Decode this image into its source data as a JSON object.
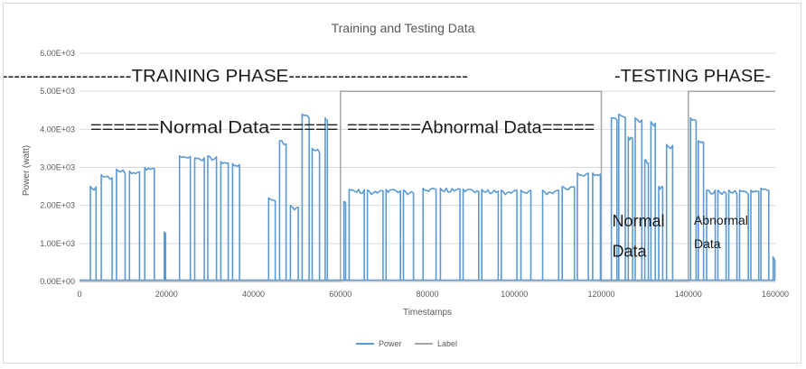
{
  "chart_data": {
    "type": "line",
    "title": "Training and Testing Data",
    "xlabel": "Timestamps",
    "ylabel": "Power (watt)",
    "xlim": [
      0,
      160000
    ],
    "ylim": [
      0,
      6000
    ],
    "x_ticks": [
      0,
      20000,
      40000,
      60000,
      80000,
      100000,
      120000,
      140000,
      160000
    ],
    "x_tick_labels": [
      "0",
      "20000",
      "40000",
      "60000",
      "80000",
      "100000",
      "120000",
      "140000",
      "160000"
    ],
    "y_ticks": [
      0,
      1000,
      2000,
      3000,
      4000,
      5000,
      6000
    ],
    "y_tick_labels": [
      "0.00E+00",
      "1.00E+03",
      "2.00E+03",
      "3.00E+03",
      "4.00E+03",
      "5.00E+03",
      "6.00E+03"
    ],
    "grid": "horizontal",
    "legend_position": "bottom",
    "series": [
      {
        "name": "Power",
        "color": "#5b9bd5",
        "style": "pulses",
        "pulses": [
          {
            "start": 2500,
            "end": 3800,
            "high": 2500
          },
          {
            "start": 5000,
            "end": 7500,
            "high": 2800
          },
          {
            "start": 8500,
            "end": 10500,
            "high": 2950
          },
          {
            "start": 11500,
            "end": 13800,
            "high": 2900
          },
          {
            "start": 15000,
            "end": 17200,
            "high": 3000
          },
          {
            "start": 19500,
            "end": 19800,
            "high": 1300
          },
          {
            "start": 23000,
            "end": 25500,
            "high": 3300
          },
          {
            "start": 26500,
            "end": 28700,
            "high": 3250
          },
          {
            "start": 29500,
            "end": 31500,
            "high": 3300
          },
          {
            "start": 32500,
            "end": 34200,
            "high": 3150
          },
          {
            "start": 35200,
            "end": 36800,
            "high": 3100
          },
          {
            "start": 43500,
            "end": 45000,
            "high": 2200
          },
          {
            "start": 46000,
            "end": 47500,
            "high": 3700
          },
          {
            "start": 48500,
            "end": 50300,
            "high": 2000
          },
          {
            "start": 51200,
            "end": 52800,
            "high": 4400
          },
          {
            "start": 53500,
            "end": 55200,
            "high": 3500
          },
          {
            "start": 56500,
            "end": 57000,
            "high": 4300
          },
          {
            "start": 60800,
            "end": 61200,
            "high": 2100
          },
          {
            "start": 62000,
            "end": 65500,
            "high": 2420
          },
          {
            "start": 66200,
            "end": 69800,
            "high": 2400
          },
          {
            "start": 70500,
            "end": 73800,
            "high": 2420
          },
          {
            "start": 74500,
            "end": 76800,
            "high": 2400
          },
          {
            "start": 79000,
            "end": 82000,
            "high": 2450
          },
          {
            "start": 83000,
            "end": 87500,
            "high": 2450
          },
          {
            "start": 88200,
            "end": 91800,
            "high": 2430
          },
          {
            "start": 92500,
            "end": 96300,
            "high": 2420
          },
          {
            "start": 97000,
            "end": 100600,
            "high": 2400
          },
          {
            "start": 101500,
            "end": 103800,
            "high": 2400
          },
          {
            "start": 106500,
            "end": 110200,
            "high": 2400
          },
          {
            "start": 111000,
            "end": 113800,
            "high": 2500
          },
          {
            "start": 114500,
            "end": 117000,
            "high": 2850
          },
          {
            "start": 118000,
            "end": 119800,
            "high": 2850
          },
          {
            "start": 122300,
            "end": 123600,
            "high": 4300
          },
          {
            "start": 124000,
            "end": 125500,
            "high": 4400
          },
          {
            "start": 126200,
            "end": 127200,
            "high": 3800
          },
          {
            "start": 127800,
            "end": 129300,
            "high": 4300
          },
          {
            "start": 130000,
            "end": 130800,
            "high": 3200
          },
          {
            "start": 131400,
            "end": 132400,
            "high": 4200
          },
          {
            "start": 133200,
            "end": 134100,
            "high": 2500
          },
          {
            "start": 135000,
            "end": 136400,
            "high": 3600
          },
          {
            "start": 140500,
            "end": 141800,
            "high": 4300
          },
          {
            "start": 142300,
            "end": 143500,
            "high": 3700
          },
          {
            "start": 144200,
            "end": 146200,
            "high": 2400
          },
          {
            "start": 146800,
            "end": 148700,
            "high": 2400
          },
          {
            "start": 149300,
            "end": 151200,
            "high": 2400
          },
          {
            "start": 151800,
            "end": 153800,
            "high": 2400
          },
          {
            "start": 154400,
            "end": 156200,
            "high": 2400
          },
          {
            "start": 156700,
            "end": 158500,
            "high": 2450
          },
          {
            "start": 159500,
            "end": 159900,
            "high": 650
          }
        ]
      },
      {
        "name": "Label",
        "color": "#a5a5a5",
        "style": "step",
        "x": [
          0,
          60000,
          60000,
          120000,
          120000,
          140000,
          140000,
          160000
        ],
        "y": [
          0,
          0,
          5000,
          5000,
          0,
          0,
          5000,
          5000
        ]
      }
    ],
    "annotations": [
      {
        "text": "-----------------------------TRAINING PHASE-----------------------------",
        "x": 30000,
        "y": 5250,
        "size": "big"
      },
      {
        "text": "-TESTING PHASE-",
        "x": 141500,
        "y": 5250,
        "size": "big"
      },
      {
        "text": "======Normal Data======",
        "x": 26500,
        "y": 3900,
        "size": "big"
      },
      {
        "text": "=======Abnormal Data=====",
        "x": 90500,
        "y": 3900,
        "size": "big"
      },
      {
        "text": "Normal",
        "x": 122500,
        "y": 1450,
        "size": "mid"
      },
      {
        "text": "Data",
        "x": 122500,
        "y": 650,
        "size": "mid"
      },
      {
        "text": "Abnormal",
        "x": 141300,
        "y": 1500,
        "size": "small"
      },
      {
        "text": "Data",
        "x": 141300,
        "y": 880,
        "size": "small"
      }
    ]
  }
}
